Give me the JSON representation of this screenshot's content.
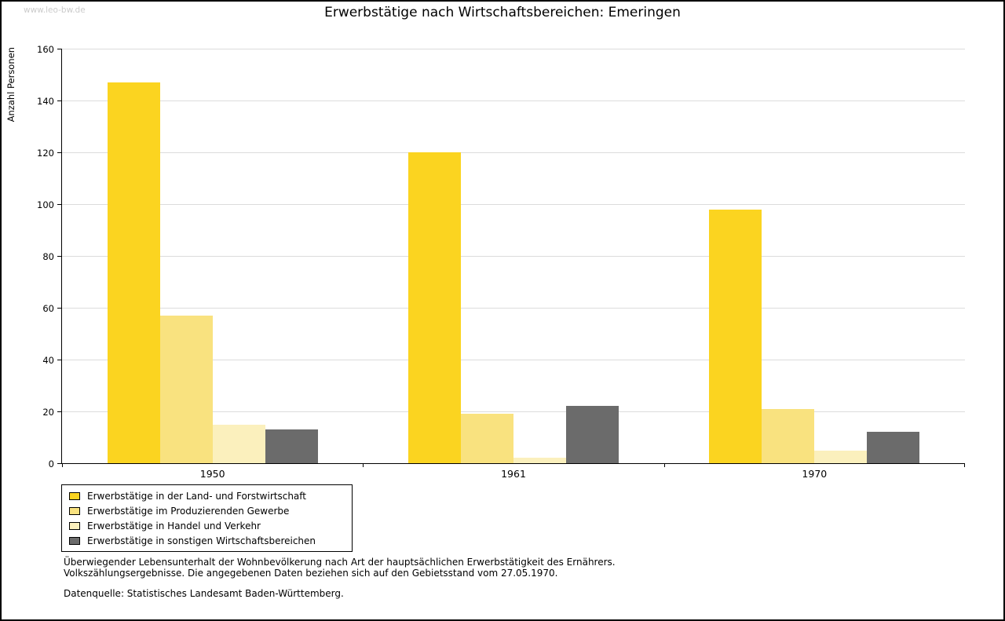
{
  "watermark": "www.leo-bw.de",
  "chart_data": {
    "type": "bar",
    "title": "Erwerbstätige nach Wirtschaftsbereichen: Emeringen",
    "ylabel": "Anzahl Personen",
    "categories": [
      "1950",
      "1961",
      "1970"
    ],
    "series": [
      {
        "name": "Erwerbstätige in der Land- und Forstwirtschaft",
        "color": "#FBD420",
        "values": [
          147,
          120,
          98
        ]
      },
      {
        "name": "Erwerbstätige im Produzierenden Gewerbe",
        "color": "#F9E27F",
        "values": [
          57,
          19,
          21
        ]
      },
      {
        "name": "Erwerbstätige in Handel und Verkehr",
        "color": "#FBF0BD",
        "values": [
          15,
          2,
          5
        ]
      },
      {
        "name": "Erwerbstätige in sonstigen Wirtschaftsbereichen",
        "color": "#6B6B6B",
        "values": [
          13,
          22,
          12
        ]
      }
    ],
    "ylim": [
      0,
      160
    ],
    "ytick_step": 20,
    "grid": true,
    "legend_position": "bottom-left"
  },
  "footnotes": {
    "line1": "Überwiegender Lebensunterhalt der Wohnbevölkerung nach Art der hauptsächlichen Erwerbstätigkeit des Ernährers.",
    "line2": "Volkszählungsergebnisse. Die angegebenen Daten beziehen sich auf den Gebietsstand vom 27.05.1970.",
    "source": "Datenquelle: Statistisches Landesamt Baden-Württemberg."
  }
}
